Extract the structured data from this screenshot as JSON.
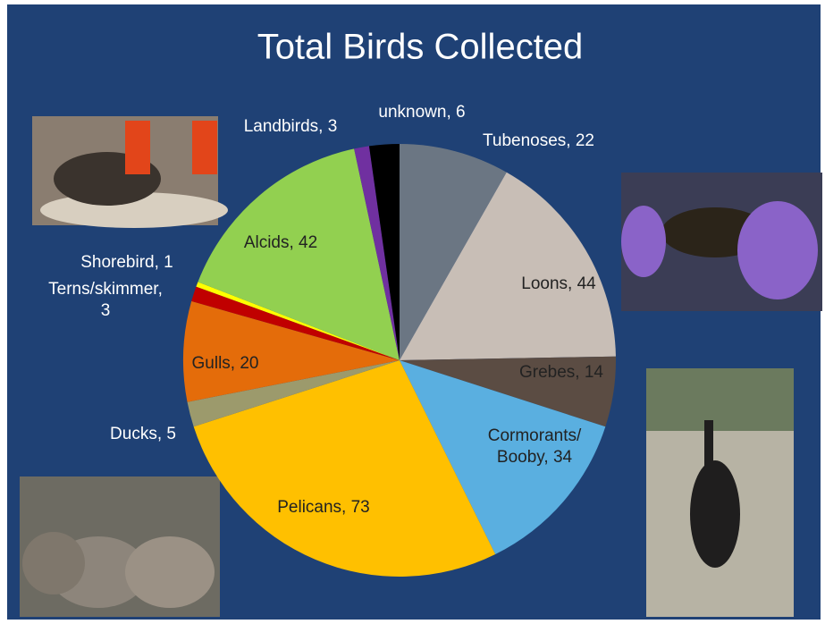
{
  "chart_data": {
    "type": "pie",
    "title": "Total Birds Collected",
    "categories": [
      [
        "Tubenoses, 22"
      ],
      [
        "Loons, 44"
      ],
      [
        "Grebes, 14"
      ],
      [
        "Cormorants/",
        "Booby, 34"
      ],
      [
        "Pelicans, 73"
      ],
      [
        "Ducks, 5"
      ],
      [
        "Gulls, 20"
      ],
      [
        "Terns/skimmer,",
        "3"
      ],
      [
        "Shorebird, 1"
      ],
      [
        "Alcids, 42"
      ],
      [
        "Landbirds, 3"
      ],
      [
        "unknown, 6"
      ]
    ],
    "values": [
      22,
      44,
      14,
      34,
      73,
      5,
      20,
      3,
      1,
      42,
      3,
      6
    ],
    "colors": [
      "#6b7683",
      "#c8beb6",
      "#5b4c43",
      "#5aafe0",
      "#ffc000",
      "#9c9a6c",
      "#e46c0a",
      "#c00000",
      "#ffff00",
      "#92d050",
      "#7030a0",
      "#000000"
    ]
  }
}
